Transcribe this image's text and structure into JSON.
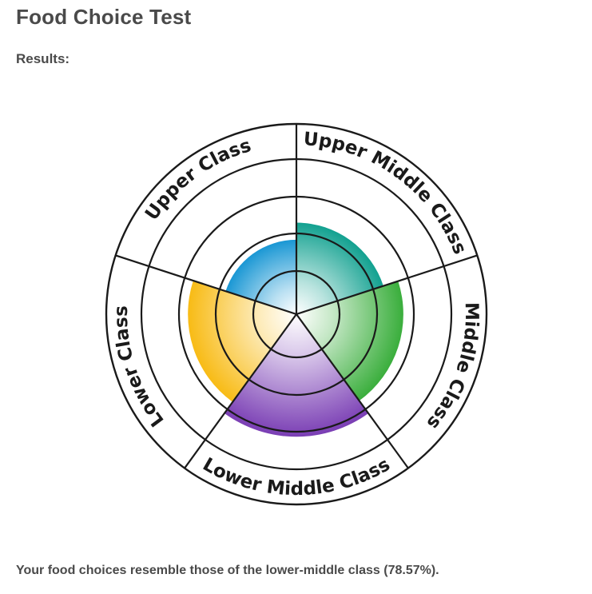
{
  "page": {
    "title": "Food Choice Test",
    "results_label": "Results:",
    "result_text": "Your food choices resemble those of the lower-middle class (78.57%)."
  },
  "chart_data": {
    "type": "radar-pie",
    "categories": [
      "Upper Class",
      "Upper Middle Class",
      "Middle Class",
      "Lower Middle Class",
      "Lower Class"
    ],
    "values": [
      48,
      59,
      69,
      79,
      70
    ],
    "rings": 4,
    "colors": {
      "Upper Class": "#1a97d4",
      "Upper Middle Class": "#12a190",
      "Middle Class": "#3aae3c",
      "Lower Middle Class": "#7a3eb4",
      "Lower Class": "#f8bb15"
    }
  }
}
